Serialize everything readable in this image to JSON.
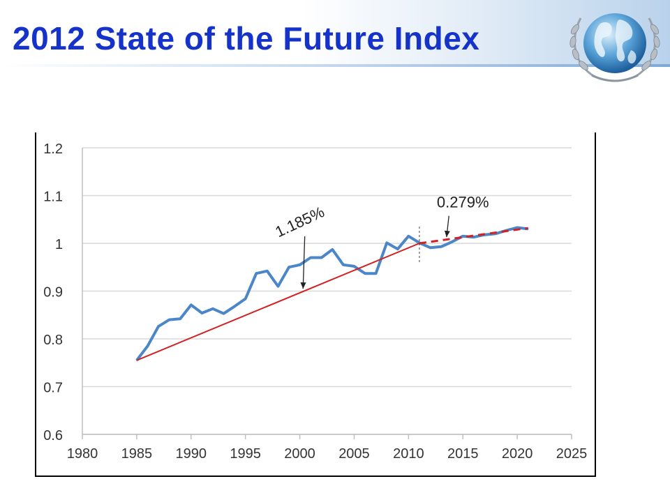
{
  "slide": {
    "title": "2012 State of the Future Index"
  },
  "colors": {
    "title": "#1533c9",
    "series_line": "#4a86c8",
    "trend_line": "#d42020",
    "grid": "#d9d9d9"
  },
  "logo": {
    "icon": "un-emblem-globe-icon"
  },
  "chart_data": {
    "type": "line",
    "title": "",
    "xlabel": "",
    "ylabel": "",
    "xlim": [
      1980,
      2025
    ],
    "ylim": [
      0.6,
      1.2
    ],
    "x_ticks": [
      1980,
      1985,
      1990,
      1995,
      2000,
      2005,
      2010,
      2015,
      2020,
      2025
    ],
    "y_ticks": [
      0.6,
      0.7,
      0.8,
      0.9,
      1.0,
      1.1,
      1.2
    ],
    "y_tick_labels": [
      "0.6",
      "0.7",
      "0.8",
      "0.9",
      "1",
      "1.1",
      "1.2"
    ],
    "grid": "horizontal",
    "series": [
      {
        "style": "solid-blue",
        "x": [
          1985,
          1986,
          1987,
          1988,
          1989,
          1990,
          1991,
          1992,
          1993,
          1994,
          1995,
          1996,
          1997,
          1998,
          1999,
          2000,
          2001,
          2002,
          2003,
          2004,
          2005,
          2006,
          2007,
          2008,
          2009,
          2010,
          2011,
          2012,
          2013,
          2014,
          2015,
          2016,
          2017,
          2018,
          2019,
          2020,
          2021
        ],
        "y": [
          0.755,
          0.785,
          0.826,
          0.84,
          0.842,
          0.871,
          0.854,
          0.863,
          0.853,
          0.868,
          0.884,
          0.937,
          0.942,
          0.91,
          0.95,
          0.955,
          0.97,
          0.97,
          0.987,
          0.955,
          0.952,
          0.937,
          0.937,
          1.001,
          0.988,
          1.015,
          1.001,
          0.991,
          0.993,
          1.003,
          1.015,
          1.013,
          1.018,
          1.02,
          1.027,
          1.033,
          1.03
        ]
      },
      {
        "style": "solid-red",
        "x": [
          1985,
          2011
        ],
        "y": [
          0.755,
          1.0
        ]
      },
      {
        "style": "dashed-red",
        "x": [
          2011,
          2021
        ],
        "y": [
          1.0,
          1.032
        ]
      }
    ],
    "annotations": [
      {
        "text": "1.185%",
        "x": 2000.2,
        "y": 1.035,
        "rotate": -25,
        "arrow_to": [
          2000.3,
          0.905
        ]
      },
      {
        "text": "0.279%",
        "x": 2015.0,
        "y": 1.075,
        "rotate": 0,
        "arrow_to": [
          2013.5,
          1.013
        ]
      }
    ],
    "divider_x": 2011,
    "divider_y_range": [
      0.96,
      1.035
    ]
  }
}
